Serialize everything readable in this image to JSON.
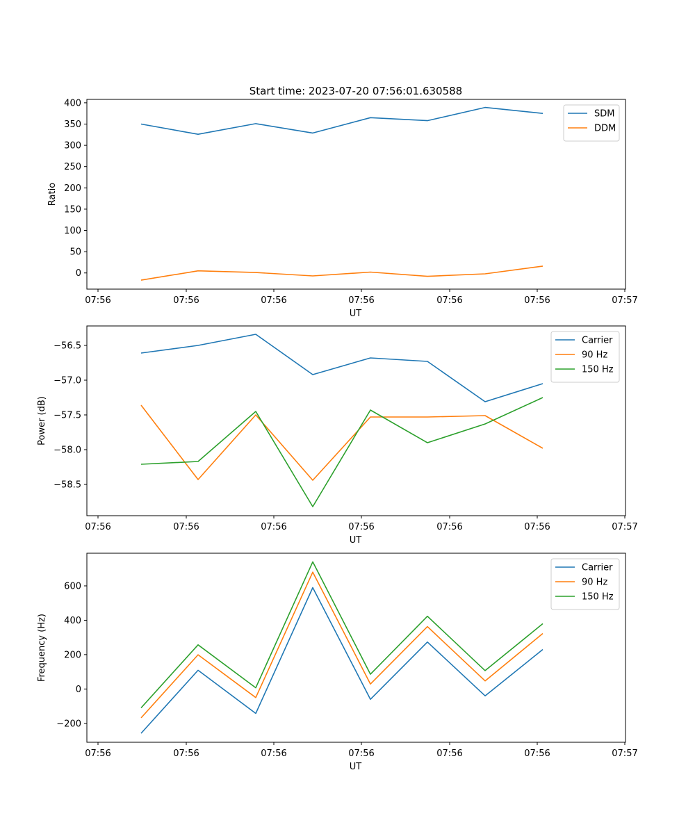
{
  "chart_data": [
    {
      "type": "line",
      "title": "Start time: 2023-07-20 07:56:01.630588",
      "xlabel": "UT",
      "ylabel": "Ratio",
      "xtick_labels": [
        "07:56",
        "07:56",
        "07:56",
        "07:56",
        "07:56",
        "07:56",
        "07:56"
      ],
      "xtick_last_label": "07:57",
      "ylim": [
        -38,
        408
      ],
      "yticks": [
        0,
        50,
        100,
        150,
        200,
        250,
        300,
        350,
        400
      ],
      "ytick_labels": [
        "0",
        "50",
        "100",
        "150",
        "200",
        "250",
        "300",
        "350",
        "400"
      ],
      "series": [
        {
          "name": "SDM",
          "color": "#1f77b4",
          "values": [
            350,
            326,
            351,
            329,
            365,
            358,
            389,
            375
          ]
        },
        {
          "name": "DDM",
          "color": "#ff7f0e",
          "values": [
            -17,
            5,
            1,
            -7,
            2,
            -8,
            -2,
            16
          ]
        }
      ]
    },
    {
      "type": "line",
      "title": "",
      "xlabel": "UT",
      "ylabel": "Power (dB)",
      "xtick_labels": [
        "07:56",
        "07:56",
        "07:56",
        "07:56",
        "07:56",
        "07:56",
        "07:56"
      ],
      "xtick_last_label": "07:57",
      "ylim": [
        -58.95,
        -56.22
      ],
      "yticks": [
        -58.5,
        -58.0,
        -57.5,
        -57.0,
        -56.5
      ],
      "ytick_labels": [
        "−58.5",
        "−58.0",
        "−57.5",
        "−57.0",
        "−56.5"
      ],
      "series": [
        {
          "name": "Carrier",
          "color": "#1f77b4",
          "values": [
            -56.61,
            -56.5,
            -56.34,
            -56.92,
            -56.68,
            -56.73,
            -57.31,
            -57.05
          ]
        },
        {
          "name": "90 Hz",
          "color": "#ff7f0e",
          "values": [
            -57.36,
            -58.43,
            -57.5,
            -58.44,
            -57.53,
            -57.53,
            -57.51,
            -57.98
          ]
        },
        {
          "name": "150 Hz",
          "color": "#2ca02c",
          "values": [
            -58.21,
            -58.17,
            -57.45,
            -58.82,
            -57.43,
            -57.9,
            -57.63,
            -57.25
          ]
        }
      ]
    },
    {
      "type": "line",
      "title": "",
      "xlabel": "UT",
      "ylabel": "Frequency (Hz)",
      "xtick_labels": [
        "07:56",
        "07:56",
        "07:56",
        "07:56",
        "07:56",
        "07:56",
        "07:56"
      ],
      "xtick_last_label": "07:57",
      "ylim": [
        -310,
        790
      ],
      "yticks": [
        -200,
        0,
        200,
        400,
        600
      ],
      "ytick_labels": [
        "−200",
        "0",
        "200",
        "400",
        "600"
      ],
      "series": [
        {
          "name": "Carrier",
          "color": "#1f77b4",
          "values": [
            -258,
            109,
            -142,
            590,
            -60,
            273,
            -40,
            230
          ]
        },
        {
          "name": "90 Hz",
          "color": "#ff7f0e",
          "values": [
            -168,
            199,
            -50,
            680,
            29,
            363,
            47,
            323
          ]
        },
        {
          "name": "150 Hz",
          "color": "#2ca02c",
          "values": [
            -110,
            257,
            7,
            740,
            86,
            423,
            107,
            380
          ]
        }
      ]
    }
  ]
}
